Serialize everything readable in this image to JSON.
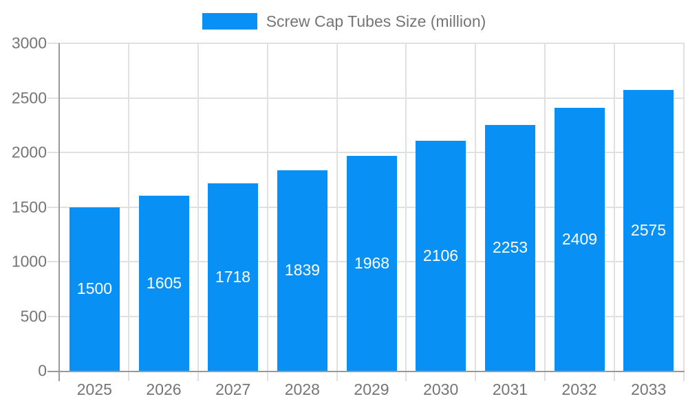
{
  "chart_data": {
    "type": "bar",
    "title": "",
    "legend_label": "Screw Cap Tubes Size (million)",
    "legend_position": "top",
    "categories": [
      "2025",
      "2026",
      "2027",
      "2028",
      "2029",
      "2030",
      "2031",
      "2032",
      "2033"
    ],
    "series": [
      {
        "name": "Screw Cap Tubes Size (million)",
        "values": [
          1500,
          1605,
          1718,
          1839,
          1968,
          2106,
          2253,
          2409,
          2575
        ]
      }
    ],
    "xlabel": "",
    "ylabel": "",
    "ylim": [
      0,
      3000
    ],
    "ytick_step": 500,
    "grid": true,
    "value_labels": "inside-center-white",
    "colors": {
      "bar": "#0990f5",
      "bar_value_text": "#ffffff",
      "axis_text": "#757575",
      "axis_line": "#999999",
      "gridline": "#e0e0e0",
      "background": "#ffffff"
    }
  }
}
